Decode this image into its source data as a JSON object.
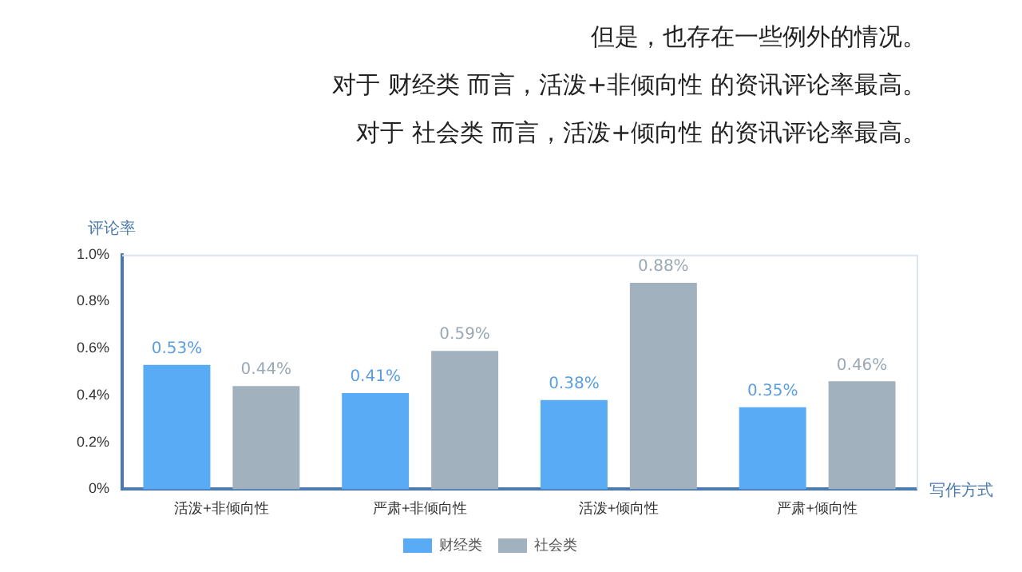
{
  "chart_data": {
    "type": "bar",
    "annotations": [
      "但是，也存在一些例外的情况。",
      "对于 财经类 而言，活泼+非倾向性 的资讯评论率最高。",
      "对于 社会类 而言，活泼+倾向性 的资讯评论率最高。"
    ],
    "ylabel": "评论率",
    "xlabel": "写作方式",
    "categories": [
      "活泼+非倾向性",
      "严肃+非倾向性",
      "活泼+倾向性",
      "严肃+倾向性"
    ],
    "series": [
      {
        "name": "财经类",
        "color": "#5aabf5",
        "values": [
          0.53,
          0.41,
          0.38,
          0.35
        ],
        "value_labels": [
          "0.53%",
          "0.41%",
          "0.38%",
          "0.35%"
        ]
      },
      {
        "name": "社会类",
        "color": "#a2b1be",
        "values": [
          0.44,
          0.59,
          0.88,
          0.46
        ],
        "value_labels": [
          "0.44%",
          "0.59%",
          "0.88%",
          "0.46%"
        ]
      }
    ],
    "ylim": [
      0,
      1
    ],
    "yticks": [
      {
        "value": 0,
        "label": "0%"
      },
      {
        "value": 0.2,
        "label": "0.2%"
      },
      {
        "value": 0.4,
        "label": "0.4%"
      },
      {
        "value": 0.6,
        "label": "0.6%"
      },
      {
        "value": 0.8,
        "label": "0.8%"
      },
      {
        "value": 1,
        "label": "1.0%"
      }
    ],
    "grid": false,
    "legend": "bottom"
  }
}
